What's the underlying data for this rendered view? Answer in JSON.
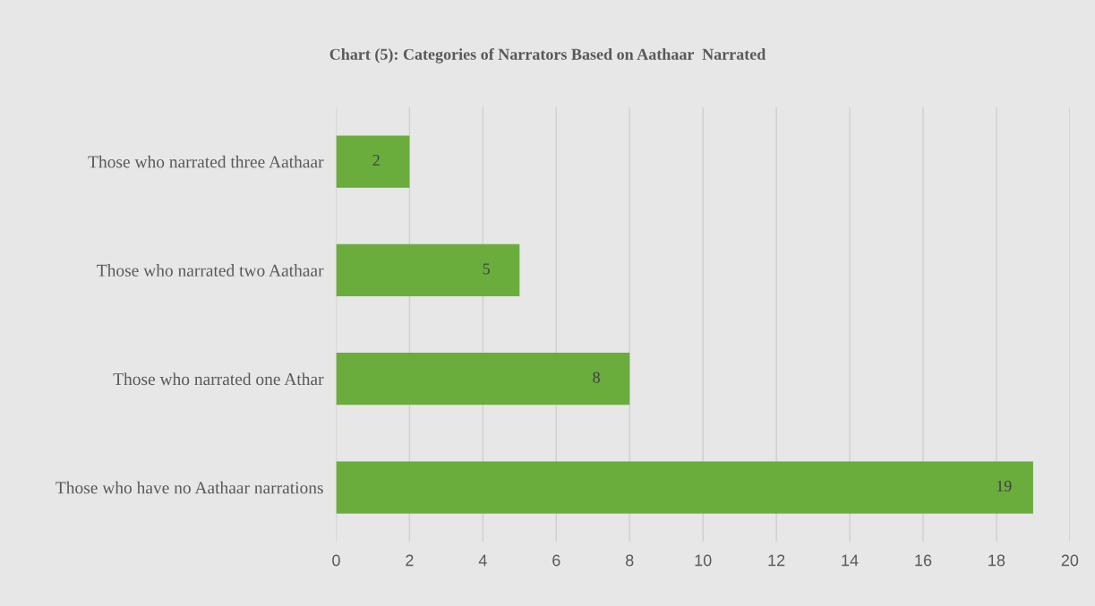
{
  "chart_data": {
    "type": "bar",
    "orientation": "horizontal",
    "title": "Chart (5): Categories of Narrators Based on Aathaar  Narrated",
    "categories": [
      "Those who narrated three Aathaar",
      "Those who narrated two Aathaar",
      "Those who narrated one Athar",
      "Those who have no Aathaar narrations"
    ],
    "values": [
      2,
      5,
      8,
      19
    ],
    "color": "#6aad3d",
    "xlim": [
      0,
      20
    ],
    "xticks": [
      0,
      2,
      4,
      6,
      8,
      10,
      12,
      14,
      16,
      18,
      20
    ],
    "grid": "x",
    "data_labels": true
  }
}
